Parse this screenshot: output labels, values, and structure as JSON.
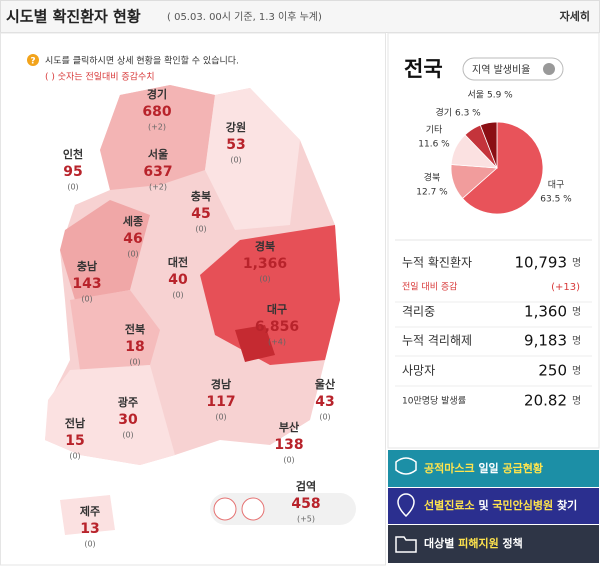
{
  "header": {
    "title": "시도별 확진환자 현황",
    "subtitle": "( 05.03. 00시 기준, 1.3 이후 누계)",
    "more": "자세히"
  },
  "notice": {
    "line1": "시도를 클릭하시면 상세 현황을 확인할 수 있습니다.",
    "line2": "( ) 숫자는 전일대비 증감수치"
  },
  "regions": [
    {
      "name": "경기",
      "count": "680",
      "change": "(+2)"
    },
    {
      "name": "강원",
      "count": "53",
      "change": "(0)"
    },
    {
      "name": "인천",
      "count": "95",
      "change": "(0)"
    },
    {
      "name": "서울",
      "count": "637",
      "change": "(+2)"
    },
    {
      "name": "충북",
      "count": "45",
      "change": "(0)"
    },
    {
      "name": "세종",
      "count": "46",
      "change": "(0)"
    },
    {
      "name": "대전",
      "count": "40",
      "change": "(0)"
    },
    {
      "name": "경북",
      "count": "1,366",
      "change": "(0)"
    },
    {
      "name": "충남",
      "count": "143",
      "change": "(0)"
    },
    {
      "name": "대구",
      "count": "6,856",
      "change": "(+4)"
    },
    {
      "name": "전북",
      "count": "18",
      "change": "(0)"
    },
    {
      "name": "경남",
      "count": "117",
      "change": "(0)"
    },
    {
      "name": "울산",
      "count": "43",
      "change": "(0)"
    },
    {
      "name": "광주",
      "count": "30",
      "change": "(0)"
    },
    {
      "name": "전남",
      "count": "15",
      "change": "(0)"
    },
    {
      "name": "부산",
      "count": "138",
      "change": "(0)"
    },
    {
      "name": "검역",
      "count": "458",
      "change": "(+5)"
    },
    {
      "name": "제주",
      "count": "13",
      "change": "(0)"
    }
  ],
  "panel": {
    "title": "전국",
    "ratio_button": "지역 발생비율"
  },
  "chart_data": {
    "type": "pie",
    "categories": [
      "대구",
      "경북",
      "기타",
      "경기",
      "서울"
    ],
    "values": [
      63.5,
      12.7,
      11.6,
      6.3,
      5.9
    ],
    "value_labels": [
      "63.5 %",
      "12.7 %",
      "11.6 %",
      "6.3 %",
      "5.9 %"
    ],
    "colors": [
      "#e8535a",
      "#f19c9c",
      "#fbe1e1",
      "#c4343b",
      "#8b0f14"
    ]
  },
  "stats": [
    {
      "label": "누적 확진환자",
      "value": "10,793",
      "unit": "명"
    },
    {
      "label": "전일 대비 증감",
      "value": "(+13)"
    },
    {
      "label": "격리중",
      "value": "1,360",
      "unit": "명"
    },
    {
      "label": "누적 격리해제",
      "value": "9,183",
      "unit": "명"
    },
    {
      "label": "사망자",
      "value": "250",
      "unit": "명"
    },
    {
      "label": "10만명당 발생률",
      "value": "20.82",
      "unit": "명"
    }
  ],
  "buttons": [
    [
      "공적마스크",
      " 일일 ",
      "공급현황"
    ],
    [
      "선별진료소",
      " 및 ",
      "국민안심병원",
      " 찾기"
    ],
    [
      "대상별 ",
      "피해지원",
      " 정책"
    ]
  ]
}
